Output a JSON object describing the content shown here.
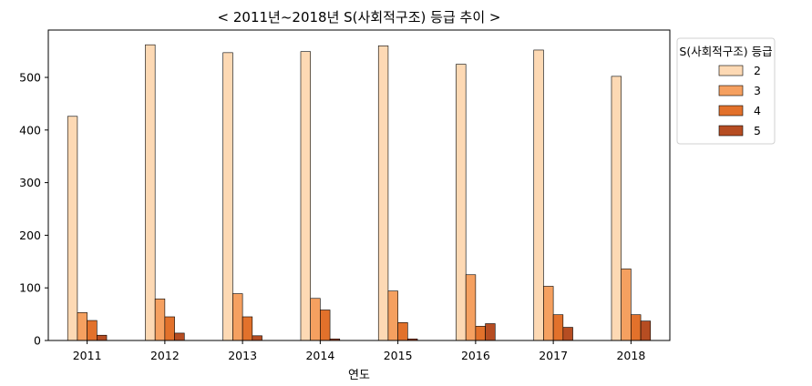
{
  "chart_data": {
    "type": "bar",
    "title": "< 2011년~2018년 S(사회적구조) 등급 추이 >",
    "xlabel": "연도",
    "ylabel": "",
    "categories": [
      "2011",
      "2012",
      "2013",
      "2014",
      "2015",
      "2016",
      "2017",
      "2018"
    ],
    "ylim": [
      0,
      590
    ],
    "yticks": [
      0,
      100,
      200,
      300,
      400,
      500
    ],
    "grid": false,
    "legend": {
      "title": "S(사회적구조) 등급",
      "placement": "top-right-outside"
    },
    "series": [
      {
        "name": "2",
        "color": "#fdd9b4",
        "values": [
          426,
          562,
          547,
          549,
          560,
          525,
          552,
          502
        ]
      },
      {
        "name": "3",
        "color": "#f5a060",
        "values": [
          53,
          79,
          89,
          80,
          94,
          125,
          103,
          136
        ]
      },
      {
        "name": "4",
        "color": "#e2712b",
        "values": [
          38,
          45,
          45,
          58,
          34,
          27,
          49,
          49
        ]
      },
      {
        "name": "5",
        "color": "#b64d22",
        "values": [
          10,
          14,
          9,
          3,
          3,
          32,
          25,
          37
        ]
      }
    ]
  }
}
